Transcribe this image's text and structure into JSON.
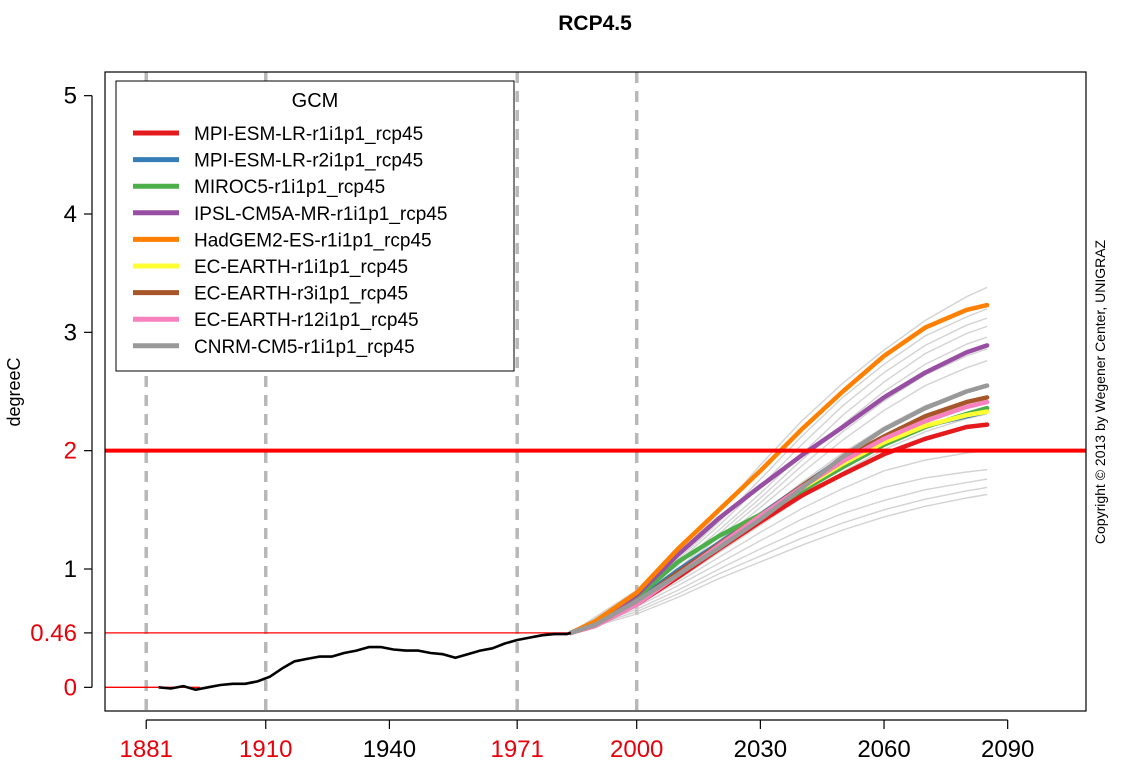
{
  "chart_data": {
    "type": "line",
    "title": "RCP4.5",
    "ylabel": "degreeC",
    "xlim": [
      1871,
      2109
    ],
    "ylim": [
      -0.2,
      5.2
    ],
    "x_ticks": [
      {
        "value": 1881,
        "label": "1881",
        "color": "#e8000b"
      },
      {
        "value": 1910,
        "label": "1910",
        "color": "#e8000b"
      },
      {
        "value": 1940,
        "label": "1940",
        "color": "#000000"
      },
      {
        "value": 1971,
        "label": "1971",
        "color": "#e8000b"
      },
      {
        "value": 2000,
        "label": "2000",
        "color": "#e8000b"
      },
      {
        "value": 2030,
        "label": "2030",
        "color": "#000000"
      },
      {
        "value": 2060,
        "label": "2060",
        "color": "#000000"
      },
      {
        "value": 2090,
        "label": "2090",
        "color": "#000000"
      }
    ],
    "y_ticks": [
      {
        "value": 0,
        "label": "0",
        "color": "#e8000b"
      },
      {
        "value": 0.46,
        "label": "0.46",
        "color": "#e8000b"
      },
      {
        "value": 1,
        "label": "1",
        "color": "#000000"
      },
      {
        "value": 2,
        "label": "2",
        "color": "#e8000b"
      },
      {
        "value": 3,
        "label": "3",
        "color": "#000000"
      },
      {
        "value": 4,
        "label": "4",
        "color": "#000000"
      },
      {
        "value": 5,
        "label": "5",
        "color": "#000000"
      }
    ],
    "vlines_dashed": [
      1881,
      1910,
      1971,
      2000
    ],
    "hline_2deg": {
      "y": 2,
      "color": "#ff0000"
    },
    "baseline_segments": [
      {
        "y": 0,
        "x_from": 1871,
        "x_to": 1894
      },
      {
        "y": 0.46,
        "x_from": 1871,
        "x_to": 1984
      }
    ],
    "legend": {
      "title": "GCM",
      "position": "top-left"
    },
    "observed": {
      "color": "#000000",
      "x": [
        1884,
        1887,
        1890,
        1893,
        1896,
        1899,
        1902,
        1905,
        1908,
        1911,
        1914,
        1917,
        1920,
        1923,
        1926,
        1929,
        1932,
        1935,
        1938,
        1941,
        1944,
        1947,
        1950,
        1953,
        1956,
        1959,
        1962,
        1965,
        1968,
        1971,
        1974,
        1977,
        1980,
        1983,
        1984
      ],
      "y": [
        0.0,
        -0.01,
        0.01,
        -0.02,
        0.0,
        0.02,
        0.03,
        0.03,
        0.05,
        0.09,
        0.16,
        0.22,
        0.24,
        0.26,
        0.26,
        0.29,
        0.31,
        0.34,
        0.34,
        0.32,
        0.31,
        0.31,
        0.29,
        0.28,
        0.25,
        0.28,
        0.31,
        0.33,
        0.37,
        0.4,
        0.42,
        0.44,
        0.45,
        0.45,
        0.46
      ]
    },
    "ensemble_background": {
      "color": "#d3d3d3",
      "x": [
        1984,
        2000,
        2010,
        2020,
        2030,
        2040,
        2050,
        2060,
        2070,
        2080,
        2085
      ],
      "series_y": [
        [
          0.46,
          0.82,
          1.12,
          1.48,
          1.88,
          2.25,
          2.57,
          2.85,
          3.1,
          3.3,
          3.38
        ],
        [
          0.46,
          0.8,
          1.08,
          1.4,
          1.76,
          2.12,
          2.45,
          2.73,
          2.97,
          3.13,
          3.2
        ],
        [
          0.46,
          0.79,
          1.06,
          1.37,
          1.7,
          2.05,
          2.38,
          2.66,
          2.89,
          3.06,
          3.12
        ],
        [
          0.46,
          0.78,
          1.03,
          1.33,
          1.64,
          1.97,
          2.3,
          2.58,
          2.82,
          2.99,
          3.05
        ],
        [
          0.46,
          0.77,
          1.0,
          1.3,
          1.6,
          1.92,
          2.22,
          2.5,
          2.73,
          2.9,
          2.96
        ],
        [
          0.46,
          0.76,
          0.99,
          1.27,
          1.56,
          1.87,
          2.16,
          2.42,
          2.64,
          2.8,
          2.86
        ],
        [
          0.46,
          0.75,
          0.97,
          1.24,
          1.52,
          1.81,
          2.09,
          2.34,
          2.55,
          2.7,
          2.76
        ],
        [
          0.46,
          0.74,
          0.95,
          1.2,
          1.46,
          1.73,
          1.98,
          2.2,
          2.38,
          2.5,
          2.55
        ],
        [
          0.46,
          0.72,
          0.93,
          1.17,
          1.42,
          1.67,
          1.9,
          2.1,
          2.26,
          2.38,
          2.42
        ],
        [
          0.46,
          0.71,
          0.91,
          1.14,
          1.37,
          1.6,
          1.82,
          2.01,
          2.16,
          2.27,
          2.31
        ],
        [
          0.46,
          0.7,
          0.89,
          1.1,
          1.31,
          1.51,
          1.68,
          1.83,
          1.92,
          1.98,
          2.0
        ],
        [
          0.46,
          0.68,
          0.86,
          1.05,
          1.24,
          1.42,
          1.57,
          1.69,
          1.77,
          1.82,
          1.84
        ],
        [
          0.46,
          0.66,
          0.82,
          1.0,
          1.17,
          1.33,
          1.47,
          1.58,
          1.67,
          1.73,
          1.76
        ],
        [
          0.46,
          0.64,
          0.79,
          0.96,
          1.11,
          1.26,
          1.39,
          1.5,
          1.59,
          1.66,
          1.69
        ],
        [
          0.46,
          0.62,
          0.76,
          0.92,
          1.06,
          1.2,
          1.33,
          1.44,
          1.53,
          1.6,
          1.63
        ]
      ]
    },
    "x_model": [
      1984,
      1990,
      2000,
      2010,
      2020,
      2030,
      2040,
      2050,
      2060,
      2070,
      2080,
      2085
    ],
    "series": [
      {
        "name": "MPI-ESM-LR-r1i1p1_rcp45",
        "color": "#e41a1c",
        "y": [
          0.46,
          0.52,
          0.7,
          0.93,
          1.17,
          1.4,
          1.62,
          1.8,
          1.97,
          2.1,
          2.2,
          2.22
        ]
      },
      {
        "name": "MPI-ESM-LR-r2i1p1_rcp45",
        "color": "#377eb8",
        "y": [
          0.46,
          0.53,
          0.73,
          0.99,
          1.22,
          1.46,
          1.7,
          1.94,
          2.1,
          2.21,
          2.29,
          2.33
        ]
      },
      {
        "name": "MIROC5-r1i1p1_rcp45",
        "color": "#4daf4a",
        "y": [
          0.46,
          0.55,
          0.76,
          1.06,
          1.28,
          1.46,
          1.66,
          1.86,
          2.05,
          2.2,
          2.31,
          2.36
        ]
      },
      {
        "name": "IPSL-CM5A-MR-r1i1p1_rcp45",
        "color": "#984ea3",
        "y": [
          0.46,
          0.55,
          0.78,
          1.12,
          1.43,
          1.7,
          1.96,
          2.2,
          2.45,
          2.66,
          2.83,
          2.89
        ]
      },
      {
        "name": "HadGEM2-ES-r1i1p1_rcp45",
        "color": "#ff7f00",
        "y": [
          0.46,
          0.56,
          0.8,
          1.17,
          1.5,
          1.83,
          2.18,
          2.5,
          2.8,
          3.04,
          3.19,
          3.23
        ]
      },
      {
        "name": "EC-EARTH-r1i1p1_rcp45",
        "color": "#ffff33",
        "y": [
          0.46,
          0.53,
          0.72,
          0.96,
          1.21,
          1.45,
          1.68,
          1.89,
          2.07,
          2.21,
          2.3,
          2.33
        ]
      },
      {
        "name": "EC-EARTH-r3i1p1_rcp45",
        "color": "#a65628",
        "y": [
          0.46,
          0.53,
          0.72,
          0.97,
          1.21,
          1.45,
          1.7,
          1.93,
          2.12,
          2.29,
          2.41,
          2.45
        ]
      },
      {
        "name": "EC-EARTH-r12i1p1_rcp45",
        "color": "#f781bf",
        "y": [
          0.46,
          0.52,
          0.7,
          0.95,
          1.2,
          1.45,
          1.69,
          1.91,
          2.1,
          2.25,
          2.37,
          2.41
        ]
      },
      {
        "name": "CNRM-CM5-r1i1p1_rcp45",
        "color": "#999999",
        "y": [
          0.46,
          0.53,
          0.73,
          0.95,
          1.18,
          1.42,
          1.68,
          1.95,
          2.18,
          2.36,
          2.5,
          2.55
        ]
      }
    ],
    "grid": false,
    "copyright": "Copyright © 2013 by Wegener Center, UNIGRAZ"
  }
}
